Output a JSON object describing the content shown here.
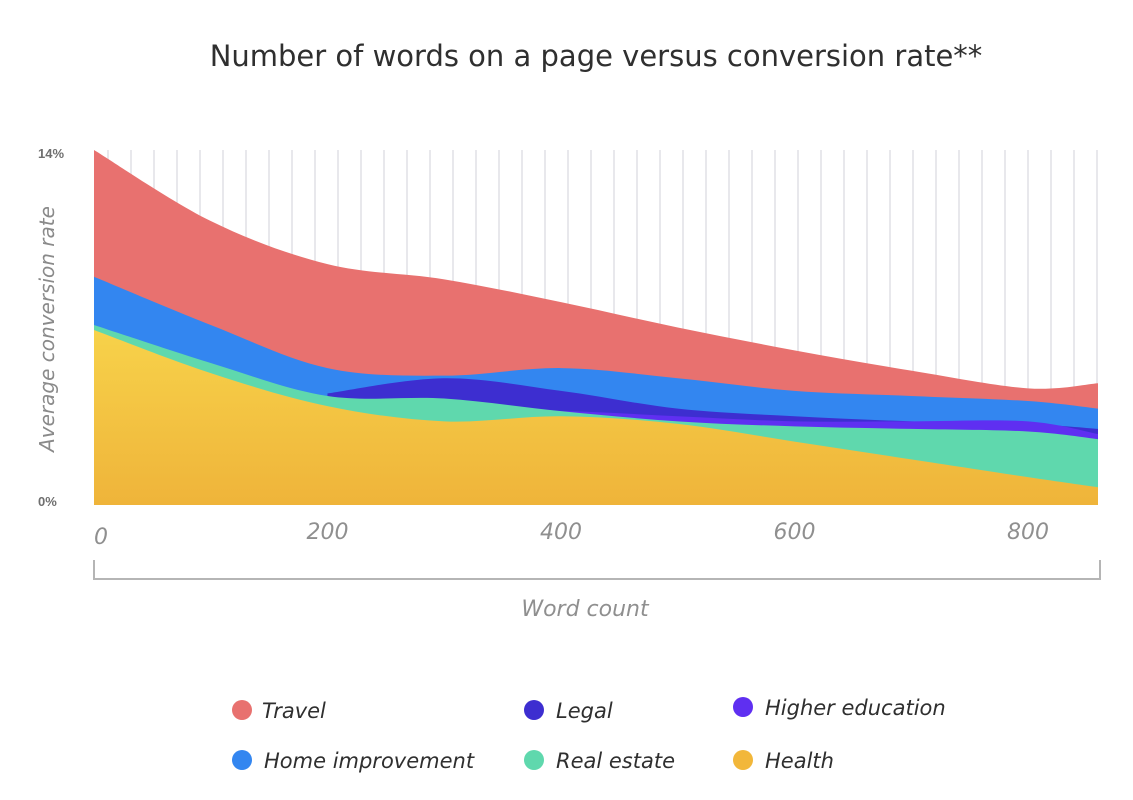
{
  "chart_data": {
    "type": "area",
    "title": "Number of words on a page versus conversion rate**",
    "xlabel": "Word count",
    "ylabel": "Average conversion rate",
    "xlim": [
      0,
      860
    ],
    "ylim": [
      0,
      14
    ],
    "x_ticks": [
      "0",
      "200",
      "400",
      "600",
      "800"
    ],
    "y_ticks": [
      "0%",
      "14%"
    ],
    "grid": "vertical",
    "legend_position": "bottom",
    "series": [
      {
        "name": "Travel",
        "color": "#e8716f",
        "x": [
          0,
          100,
          200,
          300,
          400,
          500,
          600,
          700,
          800,
          860
        ],
        "y": [
          14.0,
          11.2,
          9.5,
          8.9,
          8.0,
          7.0,
          6.1,
          5.3,
          4.6,
          4.8
        ]
      },
      {
        "name": "Home improvement",
        "color": "#3386f0",
        "x": [
          0,
          100,
          200,
          300,
          400,
          500,
          600,
          700,
          800,
          860
        ],
        "y": [
          9.0,
          7.1,
          5.4,
          5.1,
          5.4,
          5.0,
          4.5,
          4.3,
          4.1,
          3.8
        ]
      },
      {
        "name": "Legal",
        "color": "#3d2ed0",
        "x": [
          0,
          100,
          200,
          300,
          400,
          500,
          600,
          700,
          800,
          860
        ],
        "y": [
          0,
          0,
          4.4,
          5.0,
          4.5,
          3.8,
          3.5,
          3.3,
          3.2,
          3.0
        ]
      },
      {
        "name": "Higher education",
        "color": "#5f2ff1",
        "x": [
          0,
          100,
          200,
          300,
          400,
          500,
          600,
          700,
          800,
          860
        ],
        "y": [
          0,
          0,
          0,
          3.6,
          3.7,
          3.5,
          3.3,
          3.3,
          3.3,
          2.8
        ]
      },
      {
        "name": "Real estate",
        "color": "#5fd8ad",
        "x": [
          0,
          100,
          200,
          300,
          400,
          500,
          600,
          700,
          800,
          860
        ],
        "y": [
          7.1,
          5.6,
          4.3,
          4.2,
          3.7,
          3.3,
          3.1,
          3.0,
          2.9,
          2.6
        ]
      },
      {
        "name": "Health",
        "color": "#f2b73a",
        "x": [
          0,
          100,
          200,
          300,
          400,
          500,
          600,
          700,
          800,
          860
        ],
        "y": [
          6.9,
          5.2,
          3.9,
          3.3,
          3.5,
          3.2,
          2.5,
          1.8,
          1.1,
          0.7
        ]
      }
    ]
  },
  "legend": {
    "items": [
      {
        "label": "Travel",
        "color": "#e8716f"
      },
      {
        "label": "Legal",
        "color": "#3d2ed0"
      },
      {
        "label": "Higher education",
        "color": "#5f2ff1"
      },
      {
        "label": "Home improvement",
        "color": "#3386f0"
      },
      {
        "label": "Real estate",
        "color": "#5fd8ad"
      },
      {
        "label": "Health",
        "color": "#f2b73a"
      }
    ]
  }
}
